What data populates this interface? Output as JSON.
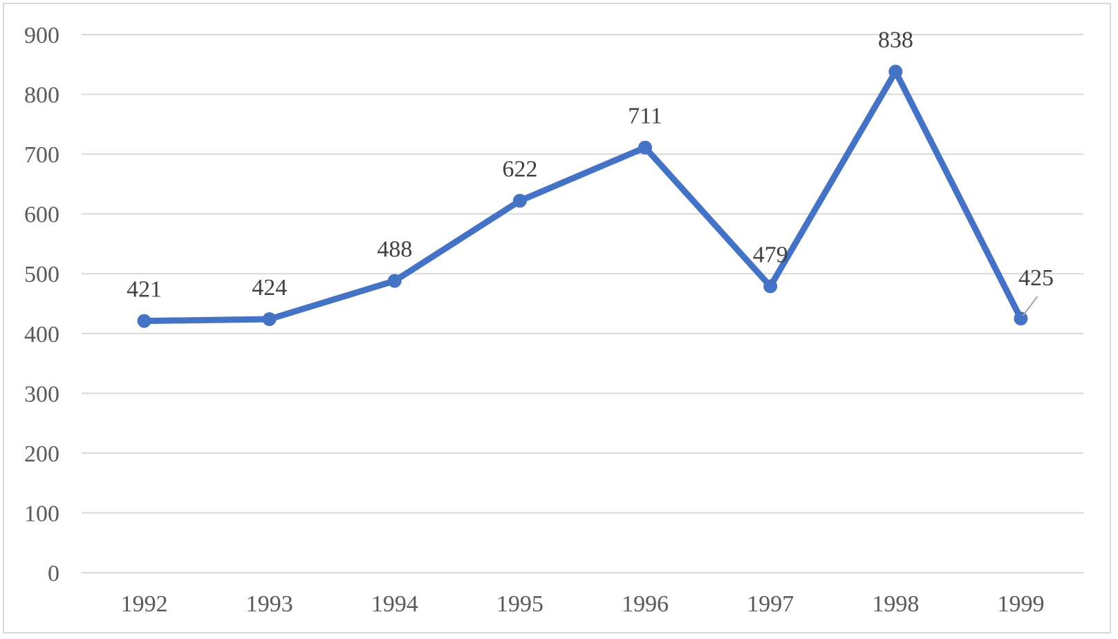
{
  "chart_data": {
    "type": "line",
    "title": "",
    "xlabel": "",
    "ylabel": "",
    "categories": [
      "1992",
      "1993",
      "1994",
      "1995",
      "1996",
      "1997",
      "1998",
      "1999"
    ],
    "series": [
      {
        "values": [
          421,
          424,
          488,
          622,
          711,
          479,
          838,
          425
        ]
      }
    ],
    "data_labels": [
      "421",
      "424",
      "488",
      "622",
      "711",
      "479",
      "838",
      "425"
    ],
    "ylim": [
      0,
      900
    ],
    "y_ticks": [
      "0",
      "100",
      "200",
      "300",
      "400",
      "500",
      "600",
      "700",
      "800",
      "900"
    ],
    "grid": true,
    "legend": "none",
    "colors": {
      "line": "#4472c4",
      "grid": "#d9d9d9",
      "border": "#d9d9d9",
      "text": "#595959"
    }
  }
}
